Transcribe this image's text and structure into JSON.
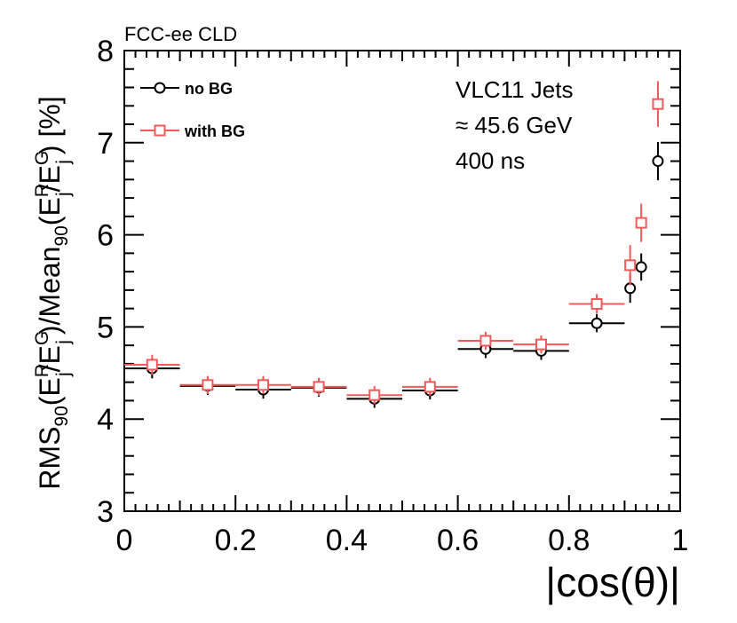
{
  "chart_data": {
    "type": "scatter",
    "header": "FCC-ee CLD",
    "xlabel": "|cos(θ)|",
    "ylabel": {
      "rms": "RMS",
      "rms_sub": "90",
      "paren1_open": "(E",
      "e_sup": "R",
      "e_sub": "j",
      "slash": "/E",
      "g_sup": "G",
      "g_sub": "j",
      "paren1_close": ")/Mean",
      "mean_sub": "90",
      "paren2_open": "(E",
      "e2_sup": "R",
      "e2_sub": "j",
      "slash2": "/E",
      "g2_sup": "G",
      "g2_sub": "j",
      "close": ") [%]"
    },
    "xlim": [
      0,
      1
    ],
    "ylim": [
      3,
      8
    ],
    "xticks": [
      0,
      0.2,
      0.4,
      0.6,
      0.8,
      1
    ],
    "xtick_labels": [
      "0",
      "0.2",
      "0.4",
      "0.6",
      "0.8",
      "1"
    ],
    "yticks": [
      3,
      4,
      5,
      6,
      7,
      8
    ],
    "ytick_labels": [
      "3",
      "4",
      "5",
      "6",
      "7",
      "8"
    ],
    "annotations": [
      "VLC11 Jets",
      "≈ 45.6 GeV",
      "400 ns"
    ],
    "series": [
      {
        "name": "no BG",
        "color": "#000000",
        "marker": "circle",
        "points": [
          {
            "x": 0.05,
            "xlo": 0.0,
            "xhi": 0.1,
            "y": 4.55,
            "err": 0.05
          },
          {
            "x": 0.15,
            "xlo": 0.1,
            "xhi": 0.2,
            "y": 4.36,
            "err": 0.04
          },
          {
            "x": 0.25,
            "xlo": 0.2,
            "xhi": 0.3,
            "y": 4.32,
            "err": 0.04
          },
          {
            "x": 0.35,
            "xlo": 0.3,
            "xhi": 0.4,
            "y": 4.34,
            "err": 0.04
          },
          {
            "x": 0.45,
            "xlo": 0.4,
            "xhi": 0.5,
            "y": 4.22,
            "err": 0.04
          },
          {
            "x": 0.55,
            "xlo": 0.5,
            "xhi": 0.6,
            "y": 4.31,
            "err": 0.04
          },
          {
            "x": 0.65,
            "xlo": 0.6,
            "xhi": 0.7,
            "y": 4.76,
            "err": 0.04
          },
          {
            "x": 0.75,
            "xlo": 0.7,
            "xhi": 0.8,
            "y": 4.74,
            "err": 0.04
          },
          {
            "x": 0.85,
            "xlo": 0.8,
            "xhi": 0.9,
            "y": 5.04,
            "err": 0.04
          },
          {
            "x": 0.91,
            "xlo": 0.905,
            "xhi": 0.915,
            "y": 5.42,
            "err": 0.1
          },
          {
            "x": 0.93,
            "xlo": 0.925,
            "xhi": 0.935,
            "y": 5.65,
            "err": 0.09
          },
          {
            "x": 0.96,
            "xlo": 0.955,
            "xhi": 0.965,
            "y": 6.8,
            "err": 0.15
          }
        ]
      },
      {
        "name": "with BG",
        "color": "#f05a5a",
        "marker": "square",
        "points": [
          {
            "x": 0.05,
            "xlo": 0.0,
            "xhi": 0.1,
            "y": 4.59,
            "err": 0.05
          },
          {
            "x": 0.15,
            "xlo": 0.1,
            "xhi": 0.2,
            "y": 4.37,
            "err": 0.04
          },
          {
            "x": 0.25,
            "xlo": 0.2,
            "xhi": 0.3,
            "y": 4.37,
            "err": 0.04
          },
          {
            "x": 0.35,
            "xlo": 0.3,
            "xhi": 0.4,
            "y": 4.35,
            "err": 0.04
          },
          {
            "x": 0.45,
            "xlo": 0.4,
            "xhi": 0.5,
            "y": 4.26,
            "err": 0.04
          },
          {
            "x": 0.55,
            "xlo": 0.5,
            "xhi": 0.6,
            "y": 4.35,
            "err": 0.04
          },
          {
            "x": 0.65,
            "xlo": 0.6,
            "xhi": 0.7,
            "y": 4.85,
            "err": 0.04
          },
          {
            "x": 0.75,
            "xlo": 0.7,
            "xhi": 0.8,
            "y": 4.81,
            "err": 0.04
          },
          {
            "x": 0.85,
            "xlo": 0.8,
            "xhi": 0.9,
            "y": 5.25,
            "err": 0.05
          },
          {
            "x": 0.91,
            "xlo": 0.905,
            "xhi": 0.915,
            "y": 5.67,
            "err": 0.16
          },
          {
            "x": 0.93,
            "xlo": 0.925,
            "xhi": 0.935,
            "y": 6.13,
            "err": 0.15
          },
          {
            "x": 0.96,
            "xlo": 0.955,
            "xhi": 0.965,
            "y": 7.42,
            "err": 0.19
          }
        ]
      }
    ],
    "legend": {
      "placement": "top-left",
      "entries": [
        "no BG",
        "with BG"
      ]
    }
  }
}
